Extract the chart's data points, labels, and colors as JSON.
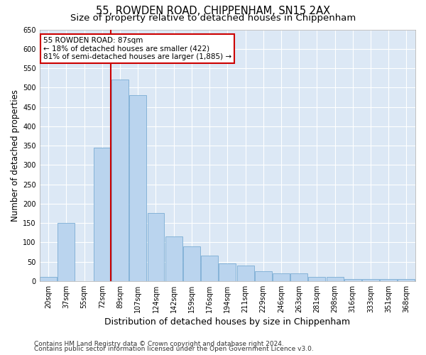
{
  "title1": "55, ROWDEN ROAD, CHIPPENHAM, SN15 2AX",
  "title2": "Size of property relative to detached houses in Chippenham",
  "xlabel": "Distribution of detached houses by size in Chippenham",
  "ylabel": "Number of detached properties",
  "categories": [
    "20sqm",
    "37sqm",
    "55sqm",
    "72sqm",
    "89sqm",
    "107sqm",
    "124sqm",
    "142sqm",
    "159sqm",
    "176sqm",
    "194sqm",
    "211sqm",
    "229sqm",
    "246sqm",
    "263sqm",
    "281sqm",
    "298sqm",
    "316sqm",
    "333sqm",
    "351sqm",
    "368sqm"
  ],
  "values": [
    10,
    150,
    0,
    345,
    520,
    480,
    175,
    115,
    90,
    65,
    45,
    40,
    25,
    20,
    20,
    10,
    10,
    5,
    5,
    5,
    5
  ],
  "bar_color": "#bad4ee",
  "bar_edge_color": "#7aadd4",
  "vline_color": "#cc0000",
  "vline_index": 4,
  "annotation_text": "55 ROWDEN ROAD: 87sqm\n← 18% of detached houses are smaller (422)\n81% of semi-detached houses are larger (1,885) →",
  "annotation_box_facecolor": "#ffffff",
  "annotation_box_edgecolor": "#cc0000",
  "ylim": [
    0,
    650
  ],
  "yticks": [
    0,
    50,
    100,
    150,
    200,
    250,
    300,
    350,
    400,
    450,
    500,
    550,
    600,
    650
  ],
  "background_color": "#dce8f5",
  "grid_color": "#ffffff",
  "footer1": "Contains HM Land Registry data © Crown copyright and database right 2024.",
  "footer2": "Contains public sector information licensed under the Open Government Licence v3.0.",
  "title_fontsize": 10.5,
  "subtitle_fontsize": 9.5,
  "ylabel_fontsize": 8.5,
  "xlabel_fontsize": 9,
  "tick_fontsize": 7,
  "annotation_fontsize": 7.5,
  "footer_fontsize": 6.5
}
